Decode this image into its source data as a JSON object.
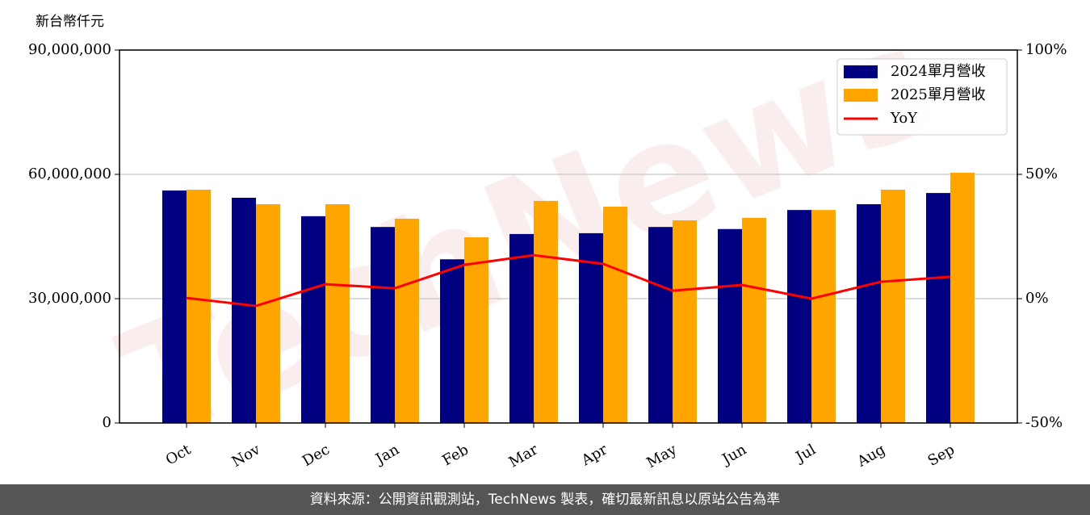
{
  "chart_data": {
    "type": "bar",
    "y_label": "新台幣仟元",
    "watermark": "TechNews",
    "footer": "資料來源：公開資訊觀測站，TechNews 製表，確切最新訊息以原站公告為準",
    "categories": [
      "Oct",
      "Nov",
      "Dec",
      "Jan",
      "Feb",
      "Mar",
      "Apr",
      "May",
      "Jun",
      "Jul",
      "Aug",
      "Sep"
    ],
    "series": [
      {
        "name": "2024單月營收",
        "color": "#000080",
        "type": "bar",
        "values": [
          56100000,
          54350000,
          49900000,
          47300000,
          39500000,
          45600000,
          45800000,
          47300000,
          46800000,
          51400000,
          52800000,
          55500000
        ]
      },
      {
        "name": "2025單月營收",
        "color": "#ffa500",
        "type": "bar",
        "values": [
          56300000,
          52800000,
          52800000,
          49300000,
          44800000,
          53600000,
          52200000,
          48900000,
          49500000,
          51400000,
          56300000,
          60400000
        ]
      },
      {
        "name": "YoY",
        "color": "#ff0000",
        "type": "line",
        "axis": "y2",
        "values": [
          0.3,
          -2.9,
          5.8,
          4.2,
          13.6,
          17.5,
          14.0,
          3.2,
          5.5,
          0.0,
          6.8,
          8.8
        ]
      }
    ],
    "ylim": [
      0,
      90000000
    ],
    "yticks": [
      0,
      {
        "value": 30000000,
        "label": "30,000,000"
      },
      {
        "value": 60000000,
        "label": "60,000,000"
      },
      {
        "value": 90000000,
        "label": "90,000,000"
      }
    ],
    "y2lim": [
      -50,
      100
    ],
    "y2ticks": [
      {
        "value": -50,
        "label": "-50%"
      },
      {
        "value": 0,
        "label": "0%"
      },
      {
        "value": 50,
        "label": "50%"
      },
      {
        "value": 100,
        "label": "100%"
      }
    ],
    "grid": true,
    "legend": "upper right"
  }
}
